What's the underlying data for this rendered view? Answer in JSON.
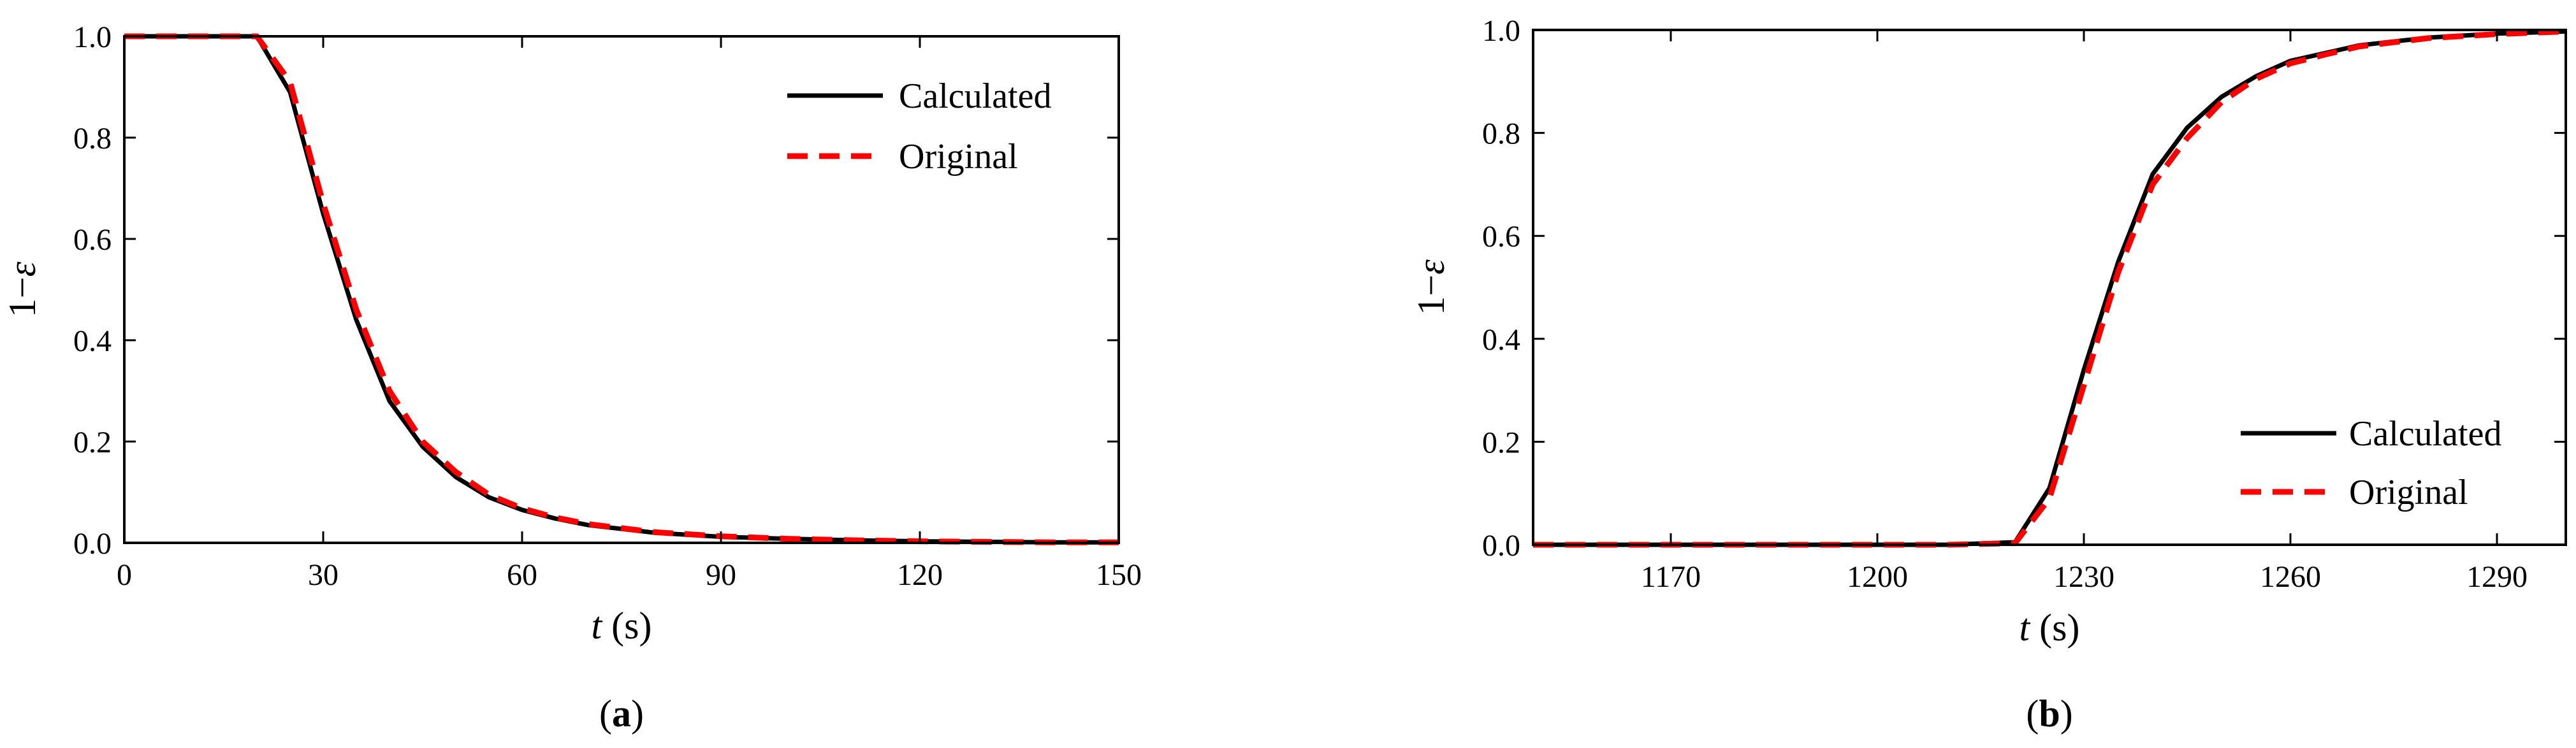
{
  "chart_data": [
    {
      "type": "line",
      "panel_label": "a",
      "xlabel": "t (s)",
      "xlabel_var": "t",
      "xlabel_unit": " (s)",
      "ylabel": "1−ε",
      "xlim": [
        0,
        150
      ],
      "ylim": [
        0,
        1.0
      ],
      "xticks": [
        0,
        30,
        60,
        90,
        120,
        150
      ],
      "yticks": [
        0.0,
        0.2,
        0.4,
        0.6,
        0.8,
        1.0
      ],
      "grid": false,
      "legend_position": "top-right",
      "series": [
        {
          "name": "Calculated",
          "style": "solid",
          "color": "#000000",
          "x": [
            0,
            10,
            20,
            25,
            30,
            35,
            40,
            45,
            50,
            55,
            60,
            65,
            70,
            80,
            90,
            100,
            110,
            120,
            130,
            140,
            150
          ],
          "y": [
            1.0,
            1.0,
            1.0,
            0.89,
            0.65,
            0.44,
            0.28,
            0.19,
            0.13,
            0.09,
            0.065,
            0.048,
            0.035,
            0.02,
            0.012,
            0.008,
            0.005,
            0.003,
            0.002,
            0.001,
            0.001
          ]
        },
        {
          "name": "Original",
          "style": "dashed",
          "color": "#ff0000",
          "x": [
            0,
            10,
            20,
            25,
            30,
            35,
            40,
            45,
            50,
            55,
            60,
            65,
            70,
            80,
            90,
            100,
            110,
            120,
            130,
            140,
            150
          ],
          "y": [
            1.0,
            1.0,
            1.0,
            0.91,
            0.67,
            0.46,
            0.3,
            0.2,
            0.14,
            0.095,
            0.068,
            0.05,
            0.037,
            0.021,
            0.013,
            0.008,
            0.005,
            0.003,
            0.002,
            0.001,
            0.001
          ]
        }
      ]
    },
    {
      "type": "line",
      "panel_label": "b",
      "xlabel": "t (s)",
      "xlabel_var": "t",
      "xlabel_unit": " (s)",
      "ylabel": "1−ε",
      "xlim": [
        1150,
        1300
      ],
      "ylim": [
        0,
        1.0
      ],
      "xticks": [
        1170,
        1200,
        1230,
        1260,
        1290
      ],
      "yticks": [
        0.0,
        0.2,
        0.4,
        0.6,
        0.8,
        1.0
      ],
      "grid": false,
      "legend_position": "bottom-right",
      "series": [
        {
          "name": "Calculated",
          "style": "solid",
          "color": "#000000",
          "x": [
            1150,
            1180,
            1210,
            1220,
            1225,
            1230,
            1235,
            1240,
            1245,
            1250,
            1255,
            1260,
            1265,
            1270,
            1280,
            1290,
            1300
          ],
          "y": [
            0,
            0,
            0,
            0.005,
            0.11,
            0.34,
            0.55,
            0.72,
            0.81,
            0.87,
            0.91,
            0.94,
            0.955,
            0.97,
            0.985,
            0.993,
            0.997
          ]
        },
        {
          "name": "Original",
          "style": "dashed",
          "color": "#ff0000",
          "x": [
            1150,
            1180,
            1210,
            1220,
            1225,
            1230,
            1235,
            1240,
            1245,
            1250,
            1255,
            1260,
            1265,
            1270,
            1280,
            1290,
            1300
          ],
          "y": [
            0,
            0,
            0,
            0.003,
            0.09,
            0.31,
            0.53,
            0.7,
            0.79,
            0.86,
            0.905,
            0.935,
            0.952,
            0.968,
            0.984,
            0.992,
            0.997
          ]
        }
      ]
    }
  ]
}
